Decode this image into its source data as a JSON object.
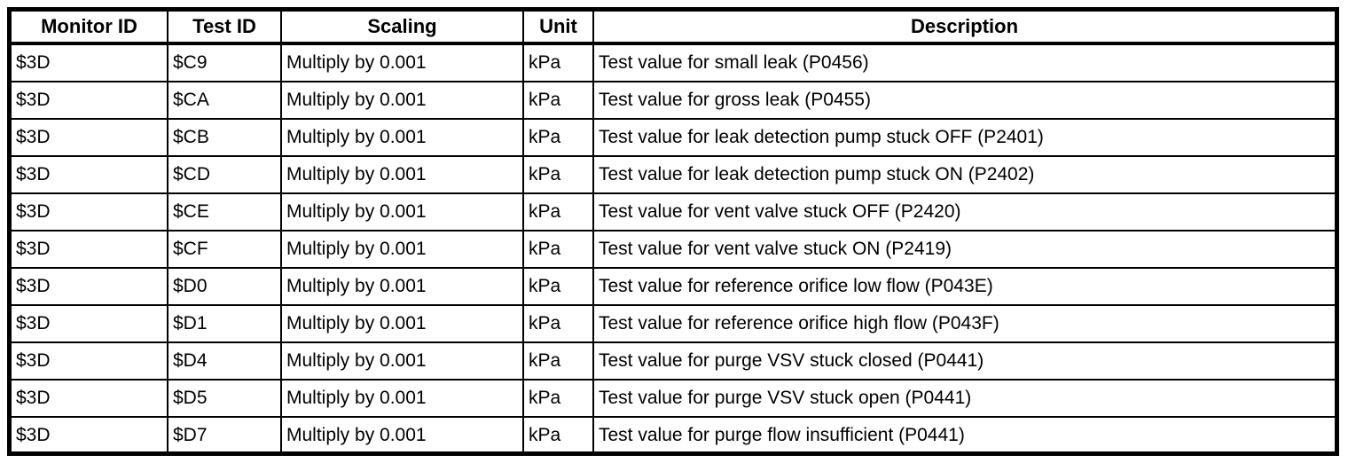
{
  "colors": {
    "border": "#000000",
    "background": "#ffffff",
    "text": "#000000"
  },
  "table": {
    "columns": [
      "Monitor ID",
      "Test ID",
      "Scaling",
      "Unit",
      "Description"
    ],
    "rows": [
      {
        "monitor_id": "$3D",
        "test_id": "$C9",
        "scaling": "Multiply by 0.001",
        "unit": "kPa",
        "description": "Test value for small leak (P0456)"
      },
      {
        "monitor_id": "$3D",
        "test_id": "$CA",
        "scaling": "Multiply by 0.001",
        "unit": "kPa",
        "description": "Test value for gross leak (P0455)"
      },
      {
        "monitor_id": "$3D",
        "test_id": "$CB",
        "scaling": "Multiply by 0.001",
        "unit": "kPa",
        "description": "Test value for leak detection pump stuck OFF (P2401)"
      },
      {
        "monitor_id": "$3D",
        "test_id": "$CD",
        "scaling": "Multiply by 0.001",
        "unit": "kPa",
        "description": "Test value for leak detection pump stuck ON (P2402)"
      },
      {
        "monitor_id": "$3D",
        "test_id": "$CE",
        "scaling": "Multiply by 0.001",
        "unit": "kPa",
        "description": "Test value for vent valve stuck OFF (P2420)"
      },
      {
        "monitor_id": "$3D",
        "test_id": "$CF",
        "scaling": "Multiply by 0.001",
        "unit": "kPa",
        "description": "Test value for vent valve stuck ON (P2419)"
      },
      {
        "monitor_id": "$3D",
        "test_id": "$D0",
        "scaling": "Multiply by 0.001",
        "unit": "kPa",
        "description": "Test value for reference orifice low flow (P043E)"
      },
      {
        "monitor_id": "$3D",
        "test_id": "$D1",
        "scaling": "Multiply by 0.001",
        "unit": "kPa",
        "description": "Test value for reference orifice high flow (P043F)"
      },
      {
        "monitor_id": "$3D",
        "test_id": "$D4",
        "scaling": "Multiply by 0.001",
        "unit": "kPa",
        "description": "Test value for purge VSV stuck closed (P0441)"
      },
      {
        "monitor_id": "$3D",
        "test_id": "$D5",
        "scaling": "Multiply by 0.001",
        "unit": "kPa",
        "description": "Test value for purge VSV stuck open (P0441)"
      },
      {
        "monitor_id": "$3D",
        "test_id": "$D7",
        "scaling": "Multiply by 0.001",
        "unit": "kPa",
        "description": "Test value for purge flow insufficient (P0441)"
      }
    ]
  }
}
